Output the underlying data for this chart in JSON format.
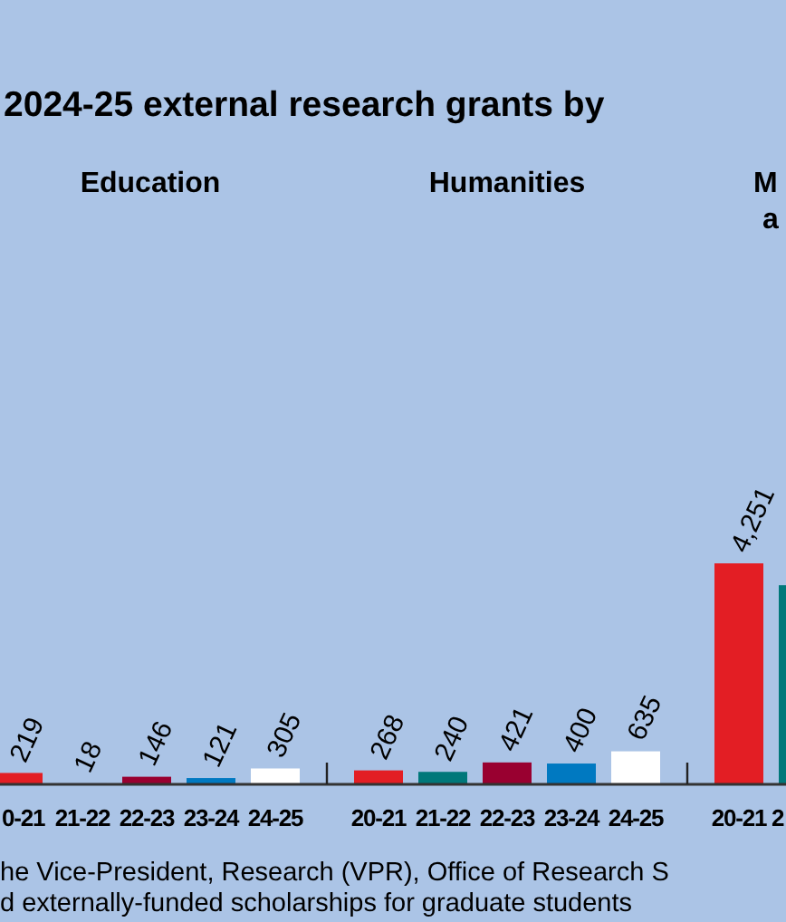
{
  "chart_data": {
    "type": "bar",
    "title": "2024-25 external research grants by",
    "categories": [
      "0-21",
      "21-22",
      "22-23",
      "23-24",
      "24-25",
      "20-21",
      "21-22",
      "22-23",
      "23-24",
      "24-25",
      "20-21",
      "2"
    ],
    "values": [
      219,
      18,
      146,
      121,
      305,
      268,
      240,
      421,
      400,
      635,
      4251,
      3830
    ],
    "value_labels": [
      "219",
      "18",
      "146",
      "121",
      "305",
      "268",
      "240",
      "421",
      "400",
      "635",
      "4,251",
      null
    ],
    "colors": [
      "#e31e24",
      "#00787a",
      "#990030",
      "#0079c1",
      "#ffffff",
      "#e31e24",
      "#00787a",
      "#990030",
      "#0079c1",
      "#ffffff",
      "#e31e24",
      "#00787a"
    ],
    "annotations": [
      "Education",
      "Humanities",
      "M",
      "a",
      "he Vice-President, Research (VPR), Office of Research S",
      "d externally-funded scholarships for graduate students"
    ]
  }
}
